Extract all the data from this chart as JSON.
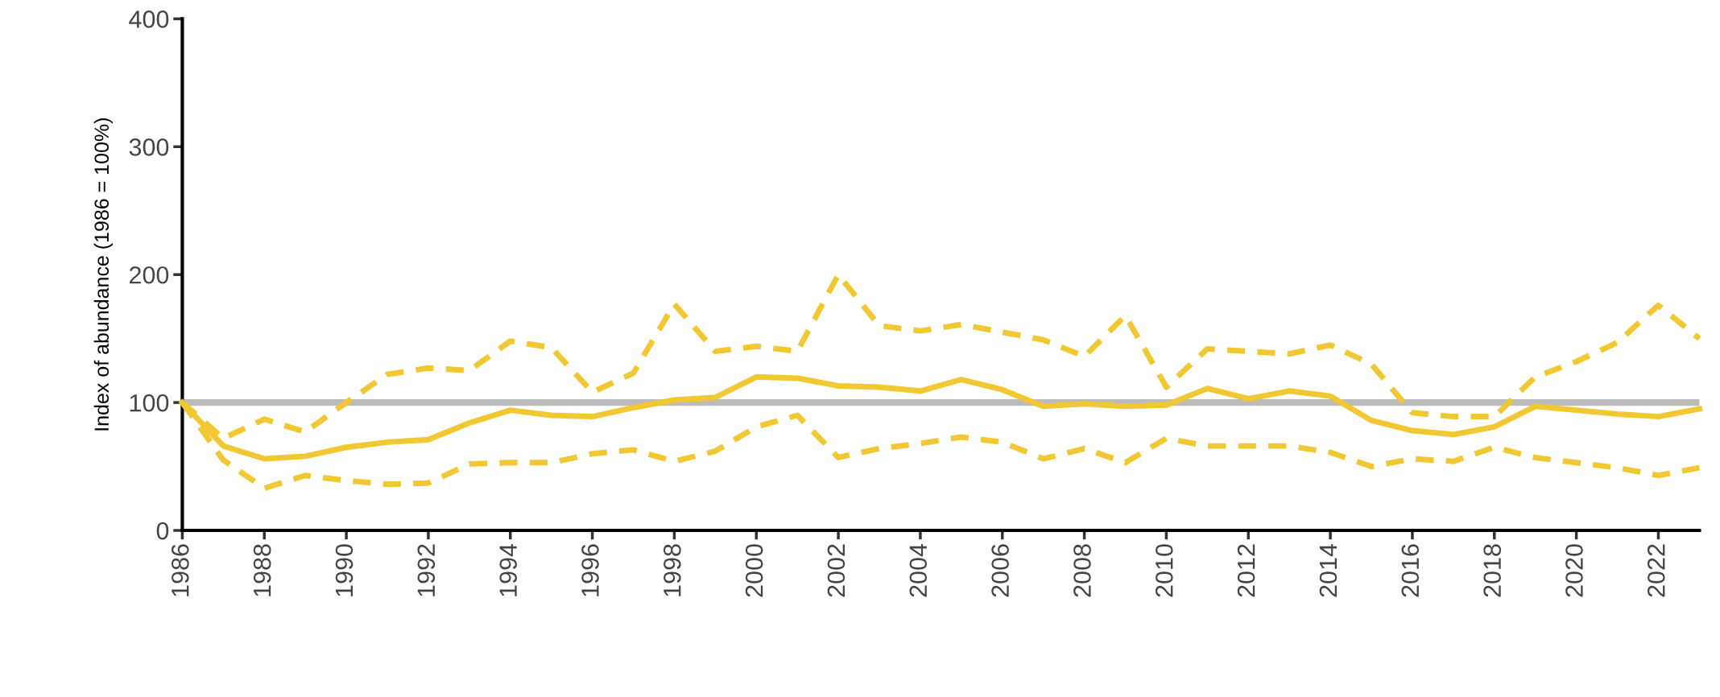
{
  "chart_data": {
    "type": "line",
    "ylabel": "Index of abundance (1986 = 100%)",
    "x": [
      1986,
      1987,
      1988,
      1989,
      1990,
      1991,
      1992,
      1993,
      1994,
      1995,
      1996,
      1997,
      1998,
      1999,
      2000,
      2001,
      2002,
      2003,
      2004,
      2005,
      2006,
      2007,
      2008,
      2009,
      2010,
      2011,
      2012,
      2013,
      2014,
      2015,
      2016,
      2017,
      2018,
      2019,
      2020,
      2021,
      2022,
      2023
    ],
    "series": [
      {
        "color": "#f2c832",
        "line_style": "solid",
        "values": [
          100,
          66,
          56,
          58,
          65,
          69,
          71,
          84,
          94,
          90,
          89,
          96,
          102,
          104,
          120,
          119,
          113,
          112,
          109,
          118,
          110,
          97,
          99,
          97,
          98,
          111,
          103,
          109,
          105,
          86,
          78,
          75,
          81,
          97,
          94,
          91,
          89,
          95
        ]
      },
      {
        "color": "#f2c832",
        "line_style": "dashed",
        "values": [
          100,
          72,
          87,
          77,
          100,
          122,
          127,
          125,
          148,
          143,
          108,
          123,
          177,
          140,
          144,
          140,
          200,
          160,
          156,
          161,
          155,
          149,
          136,
          168,
          112,
          142,
          140,
          138,
          145,
          130,
          92,
          89,
          89,
          120,
          132,
          147,
          176,
          150
        ]
      },
      {
        "color": "#f2c832",
        "line_style": "dashed",
        "values": [
          100,
          55,
          33,
          43,
          39,
          36,
          37,
          52,
          53,
          53,
          60,
          63,
          54,
          62,
          81,
          90,
          57,
          64,
          68,
          73,
          69,
          56,
          64,
          53,
          72,
          66,
          66,
          66,
          61,
          50,
          56,
          54,
          65,
          57,
          53,
          49,
          43,
          49
        ]
      }
    ],
    "xlim": [
      1986,
      2023
    ],
    "xticks": [
      1986,
      1988,
      1990,
      1992,
      1994,
      1996,
      1998,
      2000,
      2002,
      2004,
      2006,
      2008,
      2010,
      2012,
      2014,
      2016,
      2018,
      2020,
      2022
    ],
    "ylim": [
      0,
      400
    ],
    "yticks": [
      0,
      100,
      200,
      300,
      400
    ],
    "ref_lines": [
      {
        "axis": "y",
        "value": 100,
        "color": "#bbbbbb"
      }
    ],
    "grid": false,
    "legend": false
  }
}
